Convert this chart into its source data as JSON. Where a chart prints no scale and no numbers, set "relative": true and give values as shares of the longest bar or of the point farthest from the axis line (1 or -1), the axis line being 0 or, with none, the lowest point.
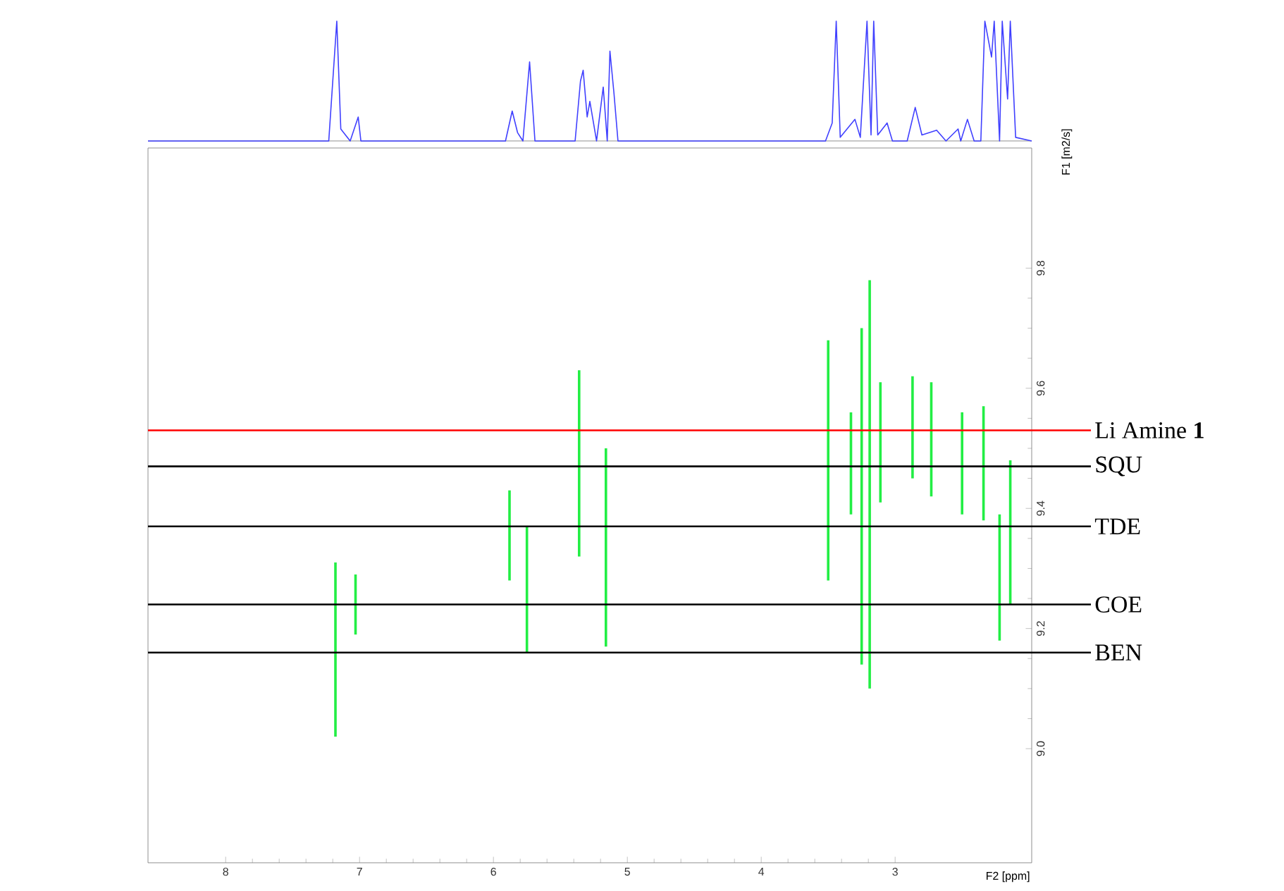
{
  "chart_data": [
    {
      "type": "line",
      "relative": true,
      "xlim": [
        8.58,
        1.98
      ],
      "series": [
        {
          "color": "#4040ff",
          "x": [
            8.58,
            7.23,
            7.17,
            7.14,
            7.07,
            7.01,
            6.99,
            5.91,
            5.86,
            5.82,
            5.78,
            5.73,
            5.69,
            5.39,
            5.35,
            5.33,
            5.3,
            5.28,
            5.23,
            5.18,
            5.15,
            5.13,
            5.1,
            5.07,
            3.52,
            3.47,
            3.44,
            3.41,
            3.3,
            3.26,
            3.21,
            3.18,
            3.16,
            3.13,
            3.06,
            3.02,
            2.91,
            2.85,
            2.8,
            2.69,
            2.62,
            2.53,
            2.51,
            2.46,
            2.41,
            2.36,
            2.33,
            2.28,
            2.26,
            2.22,
            2.2,
            2.16,
            2.14,
            2.1,
            1.98
          ],
          "values": [
            0,
            0,
            1,
            0.1,
            0,
            0.2,
            0,
            0,
            0.25,
            0.07,
            0,
            0.66,
            0,
            0,
            0.5,
            0.59,
            0.2,
            0.33,
            0,
            0.45,
            0,
            0.75,
            0.4,
            0,
            0,
            0.15,
            1,
            0.03,
            0.18,
            0.03,
            1,
            0.05,
            1,
            0.05,
            0.15,
            0,
            0,
            0.28,
            0.05,
            0.09,
            0,
            0.1,
            0,
            0.18,
            0,
            0,
            1,
            0.7,
            1,
            0,
            1,
            0.35,
            1,
            0.03,
            0
          ]
        }
      ]
    },
    {
      "type": "bar",
      "xlabel": "F2 [ppm]",
      "ylabel": "F1 [m2/s]",
      "xlim": [
        8.58,
        1.98
      ],
      "ylim": [
        8.81,
        10.0
      ],
      "xticks": [
        8,
        7,
        6,
        5,
        4,
        3
      ],
      "yticks": [
        {
          "value": 9,
          "label": "9.0"
        },
        9.2,
        9.4,
        9.6,
        9.8
      ],
      "series": [
        {
          "color": "#22ee44",
          "x": [
            7.18,
            7.03,
            5.88,
            5.75,
            5.36,
            5.16,
            3.5,
            3.33,
            3.25,
            3.19,
            3.11,
            2.87,
            2.73,
            2.5,
            2.34,
            2.22,
            2.14
          ],
          "base": [
            9.02,
            9.19,
            9.28,
            9.16,
            9.32,
            9.17,
            9.28,
            9.39,
            9.14,
            9.1,
            9.41,
            9.45,
            9.42,
            9.39,
            9.38,
            9.18,
            9.24
          ],
          "values": [
            0.29,
            0.1,
            0.15,
            0.21,
            0.31,
            0.33,
            0.4,
            0.17,
            0.56,
            0.68,
            0.2,
            0.17,
            0.19,
            0.17,
            0.19,
            0.21,
            0.24
          ]
        }
      ],
      "ref_lines": [
        {
          "axis": "y",
          "value": 9.53,
          "label": "Li Amine **1**",
          "color": "#ff0000"
        },
        {
          "axis": "y",
          "value": 9.47,
          "label": "SQU",
          "color": "#000000"
        },
        {
          "axis": "y",
          "value": 9.37,
          "label": "TDE",
          "color": "#000000"
        },
        {
          "axis": "y",
          "value": 9.24,
          "label": "COE",
          "color": "#000000"
        },
        {
          "axis": "y",
          "value": 9.16,
          "label": "BEN",
          "color": "#000000"
        }
      ]
    }
  ]
}
